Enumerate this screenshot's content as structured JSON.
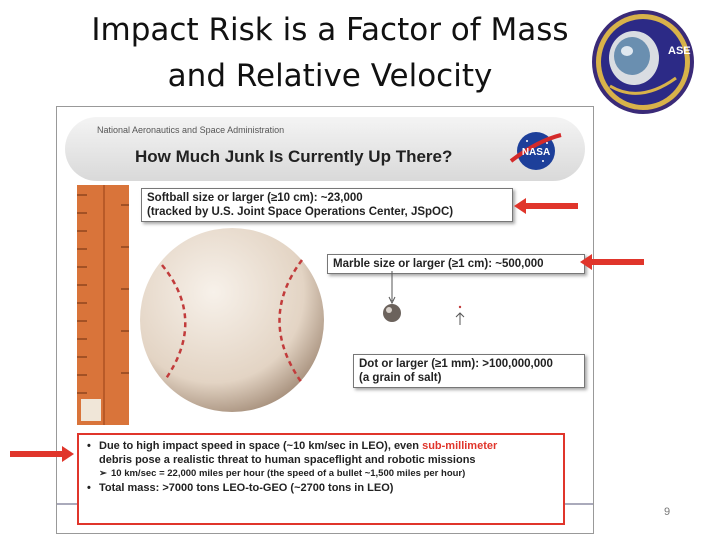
{
  "title": {
    "line1": "Impact Risk is a Factor of Mass",
    "line2": "and Relative Velocity"
  },
  "logo": {
    "text": "ASE",
    "icon": "astronaut-helmet-icon"
  },
  "slide": {
    "agency": "National Aeronautics and Space Administration",
    "question": "How Much Junk Is Currently Up There?",
    "nasa_logo": "NASA",
    "box_softball": {
      "line1": "Softball size or larger (≥10 cm):  ~23,000",
      "line2": "(tracked by U.S. Joint Space Operations Center, JSpOC)"
    },
    "box_marble": {
      "line1": "Marble size or larger (≥1 cm):  ~500,000"
    },
    "box_dot": {
      "line1": "Dot or larger (≥1 mm):  >100,000,000",
      "line2": "(a grain of salt)"
    },
    "bottom": {
      "b1_pre": "Due to high impact speed in space (~10 km/sec in LEO), even ",
      "b1_red": "sub-millimeter",
      "b1_post": "debris pose a realistic threat to human spaceflight and robotic missions",
      "b2": "10 km/sec = 22,000 miles per hour (the speed of a bullet ~1,500 miles per hour)",
      "b3": "Total mass: >7000 tons LEO-to-GEO (~2700 tons in LEO)"
    }
  },
  "page_number": "9",
  "colors": {
    "accent_red": "#e0352b",
    "ruler": "#d9743a",
    "title": "#111111"
  }
}
